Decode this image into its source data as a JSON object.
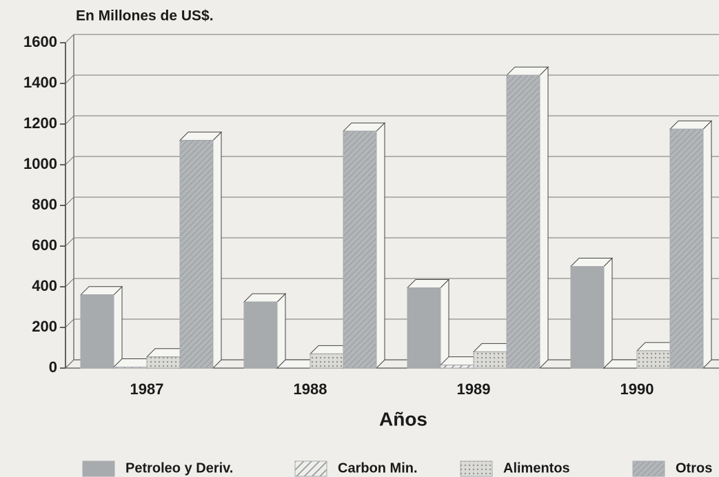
{
  "chart_data": {
    "type": "bar3d",
    "title": "En Millones de US$.",
    "x_label": "Años",
    "categories": [
      "1987",
      "1988",
      "1989",
      "1990"
    ],
    "series": [
      {
        "name": "Petroleo y Deriv.",
        "color": "#a7abae",
        "values": [
          360,
          325,
          395,
          500
        ]
      },
      {
        "name": "Carbon Min.",
        "color": "#a7abae",
        "values": [
          5,
          0,
          15,
          0
        ]
      },
      {
        "name": "Alimentos",
        "color": "#a7abae",
        "values": [
          55,
          70,
          80,
          85
        ]
      },
      {
        "name": "Otros",
        "color": "#a7abae",
        "values": [
          1120,
          1165,
          1440,
          1175
        ]
      }
    ],
    "ylim": [
      0,
      1600
    ],
    "yticks": [
      0,
      200,
      400,
      600,
      800,
      1000,
      1200,
      1400,
      1600
    ],
    "grid": true,
    "legend": "bottom"
  }
}
